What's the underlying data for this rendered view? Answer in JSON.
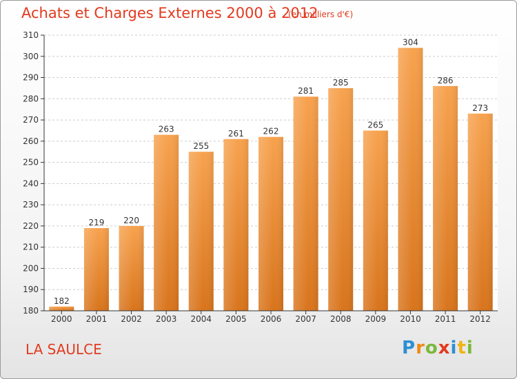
{
  "chart_data": {
    "type": "bar",
    "title": "Achats et Charges Externes 2000 à 2012",
    "subtitle": "(en milliers d'€)",
    "categories": [
      "2000",
      "2001",
      "2002",
      "2003",
      "2004",
      "2005",
      "2006",
      "2007",
      "2008",
      "2009",
      "2010",
      "2011",
      "2012"
    ],
    "values": [
      182,
      219,
      220,
      263,
      255,
      261,
      262,
      281,
      285,
      265,
      304,
      286,
      273
    ],
    "ylim": [
      180,
      310
    ],
    "yticks": [
      180,
      190,
      200,
      210,
      220,
      230,
      240,
      250,
      260,
      270,
      280,
      290,
      300,
      310
    ],
    "grid": true,
    "bar_color_top": "#f7a24e",
    "bar_color_bottom": "#d8741c"
  },
  "footer": {
    "place": "LA SAULCE",
    "logo_letters": [
      "P",
      "r",
      "o",
      "x",
      "i",
      "t",
      "i"
    ]
  },
  "colors": {
    "title": "#e23a1e",
    "axis": "#333333",
    "grid": "#cccccc"
  }
}
